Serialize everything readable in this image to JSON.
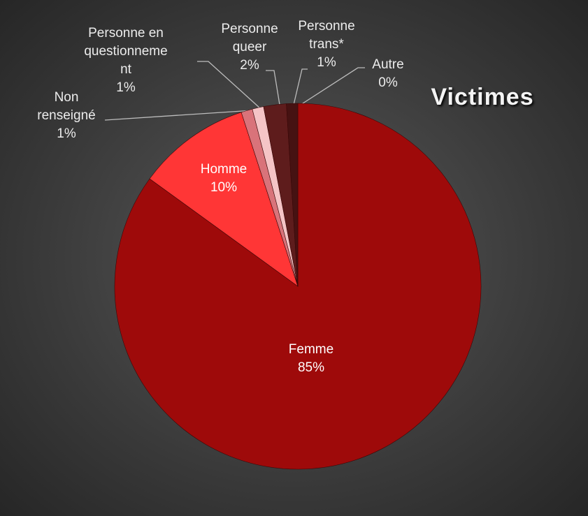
{
  "chart_data": {
    "type": "pie",
    "title": "Victimes",
    "categories": [
      "Autre",
      "Femme",
      "Homme",
      "Non renseigné",
      "Personne en questionnement",
      "Personne queer",
      "Personne trans*"
    ],
    "values": [
      0,
      85,
      10,
      1,
      1,
      2,
      1
    ],
    "value_labels": [
      "0%",
      "85%",
      "10%",
      "1%",
      "1%",
      "2%",
      "1%"
    ],
    "colors": [
      "#e3121b",
      "#9e0a0a",
      "#ff3636",
      "#d9737a",
      "#f5c4c6",
      "#5e1c1c",
      "#461212"
    ]
  }
}
